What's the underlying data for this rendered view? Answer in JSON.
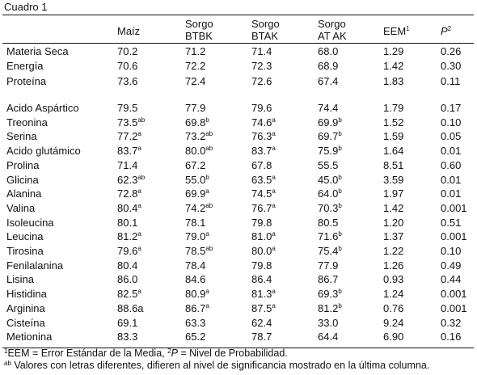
{
  "caption": "Cuadro 1",
  "headers": {
    "maiz": "Maíz",
    "sorgo_btbk": [
      "Sorgo",
      "BTBK"
    ],
    "sorgo_btak": [
      "Sorgo",
      "BTAK"
    ],
    "sorgo_atak": [
      "Sorgo",
      "AT AK"
    ],
    "eem": "EEM",
    "eem_sup": "1",
    "p": "P",
    "p_sup": "2"
  },
  "group1": [
    {
      "name": "Materia Seca",
      "maiz": "70.2",
      "maiz_sup": "",
      "btbk": "71.2",
      "btbk_sup": "",
      "btak": "71.4",
      "btak_sup": "",
      "atak": "68.0",
      "atak_sup": "",
      "eem": "1.29",
      "p": "0.26"
    },
    {
      "name": "Energía",
      "maiz": "70.6",
      "maiz_sup": "",
      "btbk": "72.2",
      "btbk_sup": "",
      "btak": "72.3",
      "btak_sup": "",
      "atak": "68.9",
      "atak_sup": "",
      "eem": "1.42",
      "p": "0.30"
    },
    {
      "name": "Proteína",
      "maiz": "73.6",
      "maiz_sup": "",
      "btbk": "72.4",
      "btbk_sup": "",
      "btak": "72.6",
      "btak_sup": "",
      "atak": "67.4",
      "atak_sup": "",
      "eem": "1.83",
      "p": "0.11"
    }
  ],
  "group2": [
    {
      "name": "Acido Aspártico",
      "maiz": "79.5",
      "maiz_sup": "",
      "btbk": "77.9",
      "btbk_sup": "",
      "btak": "79.6",
      "btak_sup": "",
      "atak": "74.4",
      "atak_sup": "",
      "eem": "1.79",
      "p": "0.17"
    },
    {
      "name": "Treonina",
      "maiz": "73.5",
      "maiz_sup": "ab",
      "btbk": "69.8",
      "btbk_sup": "b",
      "btak": "74.6",
      "btak_sup": "a",
      "atak": "69.9",
      "atak_sup": "b",
      "eem": "1.52",
      "p": "0.10"
    },
    {
      "name": "Serina",
      "maiz": "77.2",
      "maiz_sup": "a",
      "btbk": "73.2",
      "btbk_sup": "ab",
      "btak": "76.3",
      "btak_sup": "a",
      "atak": "69.7",
      "atak_sup": "b",
      "eem": "1.59",
      "p": "0.05"
    },
    {
      "name": "Acido glutámico",
      "maiz": "83.7",
      "maiz_sup": "a",
      "btbk": "80.0",
      "btbk_sup": "ab",
      "btak": "83.7",
      "btak_sup": "a",
      "atak": "75.9",
      "atak_sup": "b",
      "eem": "1.64",
      "p": "0.01"
    },
    {
      "name": "Prolina",
      "maiz": "71.4",
      "maiz_sup": "",
      "btbk": "67.2",
      "btbk_sup": "",
      "btak": "67.8",
      "btak_sup": "",
      "atak": "55.5",
      "atak_sup": "",
      "eem": "8.51",
      "p": "0.60"
    },
    {
      "name": "Glicina",
      "maiz": "62.3",
      "maiz_sup": "ab",
      "btbk": "55.0",
      "btbk_sup": "b",
      "btak": "63.5",
      "btak_sup": "a",
      "atak": "45.0",
      "atak_sup": "b",
      "eem": "3.59",
      "p": "0.01"
    },
    {
      "name": "Alanina",
      "maiz": "72.8",
      "maiz_sup": "a",
      "btbk": "69.9",
      "btbk_sup": "a",
      "btak": "74.5",
      "btak_sup": "a",
      "atak": "64.0",
      "atak_sup": "b",
      "eem": "1.97",
      "p": "0.01"
    },
    {
      "name": "Valina",
      "maiz": "80.4",
      "maiz_sup": "a",
      "btbk": "74.2",
      "btbk_sup": "ab",
      "btak": "76.7",
      "btak_sup": "a",
      "atak": "70.3",
      "atak_sup": "b",
      "eem": "1.42",
      "p": "0.001"
    },
    {
      "name": "Isoleucina",
      "maiz": "80.1",
      "maiz_sup": "",
      "btbk": "78.1",
      "btbk_sup": "",
      "btak": "79.8",
      "btak_sup": "",
      "atak": "80.5",
      "atak_sup": "",
      "eem": "1.20",
      "p": "0.51"
    },
    {
      "name": "Leucina",
      "maiz": "81.2",
      "maiz_sup": "a",
      "btbk": "79.0",
      "btbk_sup": "a",
      "btak": "81.0",
      "btak_sup": "a",
      "atak": "71.6",
      "atak_sup": "b",
      "eem": "1.37",
      "p": "0.001"
    },
    {
      "name": "Tirosina",
      "maiz": "79.6",
      "maiz_sup": "a",
      "btbk": "78.5",
      "btbk_sup": "ab",
      "btak": "80.0",
      "btak_sup": "a",
      "atak": "75.4",
      "atak_sup": "b",
      "eem": "1.22",
      "p": "0.10"
    },
    {
      "name": "Fenilalanina",
      "maiz": "80.4",
      "maiz_sup": "",
      "btbk": "78.4",
      "btbk_sup": "",
      "btak": "79.8",
      "btak_sup": "",
      "atak": "77.9",
      "atak_sup": "",
      "eem": "1.26",
      "p": "0.49"
    },
    {
      "name": "Lisina",
      "maiz": "86.0",
      "maiz_sup": "",
      "btbk": "84.6",
      "btbk_sup": "",
      "btak": "86.4",
      "btak_sup": "",
      "atak": "86.7",
      "atak_sup": "",
      "eem": "0.93",
      "p": "0.44"
    },
    {
      "name": "Histidina",
      "maiz": "82.5",
      "maiz_sup": "a",
      "btbk": "80.9",
      "btbk_sup": "a",
      "btak": "81.3",
      "btak_sup": "a",
      "atak": "69.3",
      "atak_sup": "b",
      "eem": "1.24",
      "p": "0.001"
    },
    {
      "name": "Arginina",
      "maiz": "88.6a",
      "maiz_sup": "",
      "btbk": "86.7",
      "btbk_sup": "a",
      "btak": "87.5",
      "btak_sup": "a",
      "atak": "81.2",
      "atak_sup": "b",
      "eem": "0.76",
      "p": "0.001"
    },
    {
      "name": "Cisteína",
      "maiz": "69.1",
      "maiz_sup": "",
      "btbk": "63.3",
      "btbk_sup": "",
      "btak": "62.4",
      "btak_sup": "",
      "atak": "33.0",
      "atak_sup": "",
      "eem": "9.24",
      "p": "0.32"
    },
    {
      "name": "Metionina",
      "maiz": "83.3",
      "maiz_sup": "",
      "btbk": "65.2",
      "btbk_sup": "",
      "btak": "78.7",
      "btak_sup": "",
      "atak": "64.4",
      "atak_sup": "",
      "eem": "6.90",
      "p": "0.16"
    }
  ],
  "footnotes": {
    "f1_sup": "1",
    "f1_text": "EEM = Error Estándar de la Media, ",
    "f1_sup2": "2",
    "f1_p": "P",
    "f1_tail": " = Nivel de Probabilidad.",
    "f2_sup": "ab",
    "f2_text": " Valores con letras diferentes, difieren al nivel de significancia mostrado en la última columna."
  }
}
